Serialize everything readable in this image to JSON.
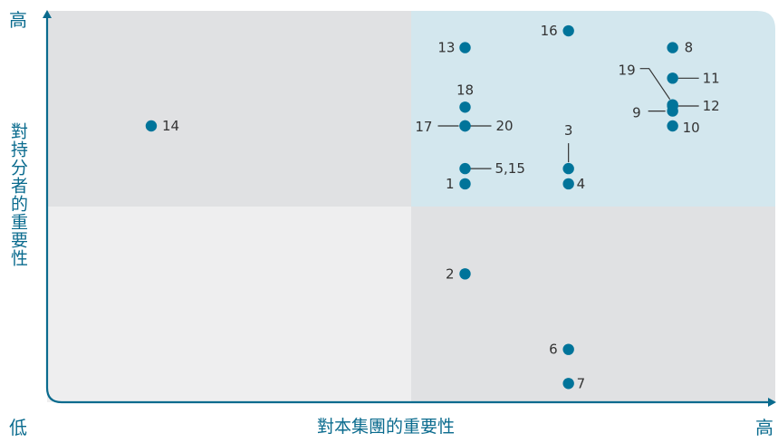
{
  "chart_data": {
    "type": "scatter",
    "title": "",
    "xlabel": "對本集團的重要性",
    "ylabel": "對持分者的重要性",
    "corner_labels": {
      "origin": "低",
      "x_end": "高",
      "y_end": "高"
    },
    "xlim": [
      0,
      10
    ],
    "ylim": [
      0,
      10
    ],
    "quadrant_divider": {
      "x": 5,
      "y": 5
    },
    "colors": {
      "marker": "#00749a",
      "axis": "#0a6b8e",
      "text": "#333333",
      "quadrant_top_right": "#d3e7ee",
      "quadrant_top_left": "#e0e1e3",
      "quadrant_bottom_right": "#e0e1e3",
      "quadrant_bottom_left": "#eeeeef"
    },
    "points": [
      {
        "label": "1",
        "x": 5.74,
        "y": 5.58
      },
      {
        "label": "2",
        "x": 5.74,
        "y": 3.28
      },
      {
        "label": "3",
        "x": 7.16,
        "y": 5.97
      },
      {
        "label": "4",
        "x": 7.16,
        "y": 5.58
      },
      {
        "label": "5,15",
        "x": 5.74,
        "y": 5.97
      },
      {
        "label": "6",
        "x": 7.16,
        "y": 1.35
      },
      {
        "label": "7",
        "x": 7.16,
        "y": 0.48
      },
      {
        "label": "8",
        "x": 8.59,
        "y": 9.06
      },
      {
        "label": "9",
        "x": 8.59,
        "y": 7.44
      },
      {
        "label": "10",
        "x": 8.59,
        "y": 7.06
      },
      {
        "label": "11",
        "x": 8.59,
        "y": 8.28
      },
      {
        "label": "12",
        "x": 8.59,
        "y": 7.57
      },
      {
        "label": "13",
        "x": 5.74,
        "y": 9.06
      },
      {
        "label": "14",
        "x": 1.43,
        "y": 7.06
      },
      {
        "label": "16",
        "x": 7.16,
        "y": 9.49
      },
      {
        "label": "17",
        "x": 5.74,
        "y": 7.06
      },
      {
        "label": "18",
        "x": 5.74,
        "y": 7.54
      },
      {
        "label": "19",
        "x": 8.59,
        "y": 7.6
      },
      {
        "label": "20",
        "x": 5.74,
        "y": 7.06
      }
    ]
  }
}
